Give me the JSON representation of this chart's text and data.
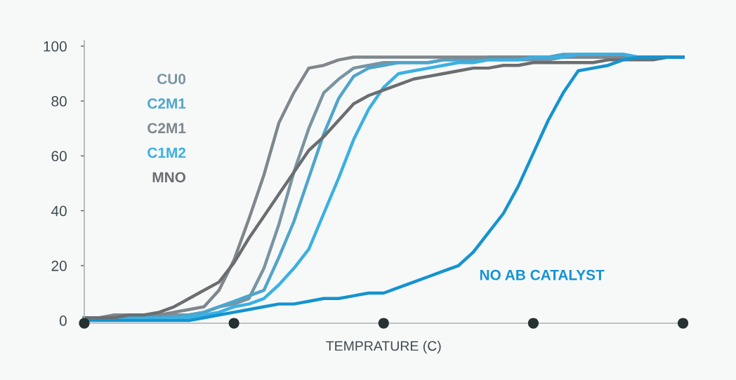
{
  "chart_data": {
    "type": "line",
    "xlabel": "TEMPRATURE (C)",
    "categories": [
      null,
      null,
      null,
      null,
      null,
      null,
      null,
      null,
      null,
      null,
      null,
      null,
      null,
      null,
      null,
      null,
      null,
      null,
      null,
      null,
      null,
      null,
      null,
      null,
      null,
      null,
      null,
      null,
      null,
      null,
      null,
      null,
      null,
      null,
      null,
      null,
      null,
      null,
      null,
      null,
      null
    ],
    "ylim": [
      -1,
      102
    ],
    "yticks": [
      0,
      20,
      40,
      60,
      80,
      100
    ],
    "grid": false,
    "marker": "none",
    "line_style": "solid",
    "series": [
      {
        "name": "CU0",
        "color": "#7a94a0",
        "values": [
          1,
          1,
          1,
          1,
          2,
          2,
          2,
          2,
          3,
          5,
          6,
          8,
          19,
          35,
          54,
          70,
          83,
          88,
          92,
          93,
          94,
          94,
          94,
          94,
          95,
          95,
          95,
          95,
          95,
          95,
          95,
          95,
          96,
          96,
          96,
          96,
          96,
          96,
          96,
          96,
          96
        ]
      },
      {
        "name": "C2M1",
        "color": "#4ea5cc",
        "values": [
          1,
          1,
          1,
          1,
          1,
          1,
          1,
          2,
          3,
          5,
          7,
          9,
          11,
          23,
          36,
          52,
          68,
          81,
          89,
          92,
          93,
          94,
          94,
          94,
          95,
          95,
          95,
          96,
          96,
          96,
          96,
          96,
          97,
          97,
          97,
          97,
          97,
          96,
          96,
          96,
          96
        ]
      },
      {
        "name": "C2M1",
        "color": "#7f878c",
        "values": [
          1,
          1,
          2,
          2,
          2,
          2,
          3,
          4,
          5,
          11,
          22,
          37,
          53,
          72,
          83,
          92,
          93,
          95,
          96,
          96,
          96,
          96,
          96,
          96,
          96,
          96,
          96,
          96,
          96,
          96,
          96,
          96,
          96,
          96,
          96,
          96,
          96,
          96,
          96,
          96,
          96
        ]
      },
      {
        "name": "C1M2",
        "color": "#3bb0e3",
        "values": [
          1,
          1,
          1,
          1,
          1,
          1,
          1,
          1,
          2,
          3,
          5,
          6,
          8,
          13,
          19,
          26,
          39,
          52,
          66,
          77,
          85,
          90,
          91,
          92,
          93,
          94,
          94,
          95,
          95,
          95,
          96,
          96,
          96,
          97,
          97,
          97,
          97,
          96,
          96,
          96,
          96
        ]
      },
      {
        "name": "MNO",
        "color": "#6b6e70",
        "values": [
          1,
          1,
          1,
          2,
          2,
          3,
          5,
          8,
          11,
          14,
          21,
          30,
          38,
          46,
          54,
          62,
          67,
          73,
          79,
          82,
          84,
          86,
          88,
          89,
          90,
          91,
          92,
          92,
          93,
          93,
          94,
          94,
          94,
          94,
          94,
          95,
          95,
          95,
          95,
          96,
          96
        ]
      },
      {
        "name": "NO AB CATALYST",
        "color": "#1593d0",
        "values": [
          0,
          0,
          0,
          0,
          0,
          0,
          0,
          0,
          1,
          2,
          3,
          4,
          5,
          6,
          6,
          7,
          8,
          8,
          9,
          10,
          10,
          12,
          14,
          16,
          18,
          20,
          25,
          32,
          39,
          49,
          61,
          73,
          83,
          91,
          92,
          93,
          95,
          96,
          96,
          96,
          96
        ]
      }
    ]
  }
}
